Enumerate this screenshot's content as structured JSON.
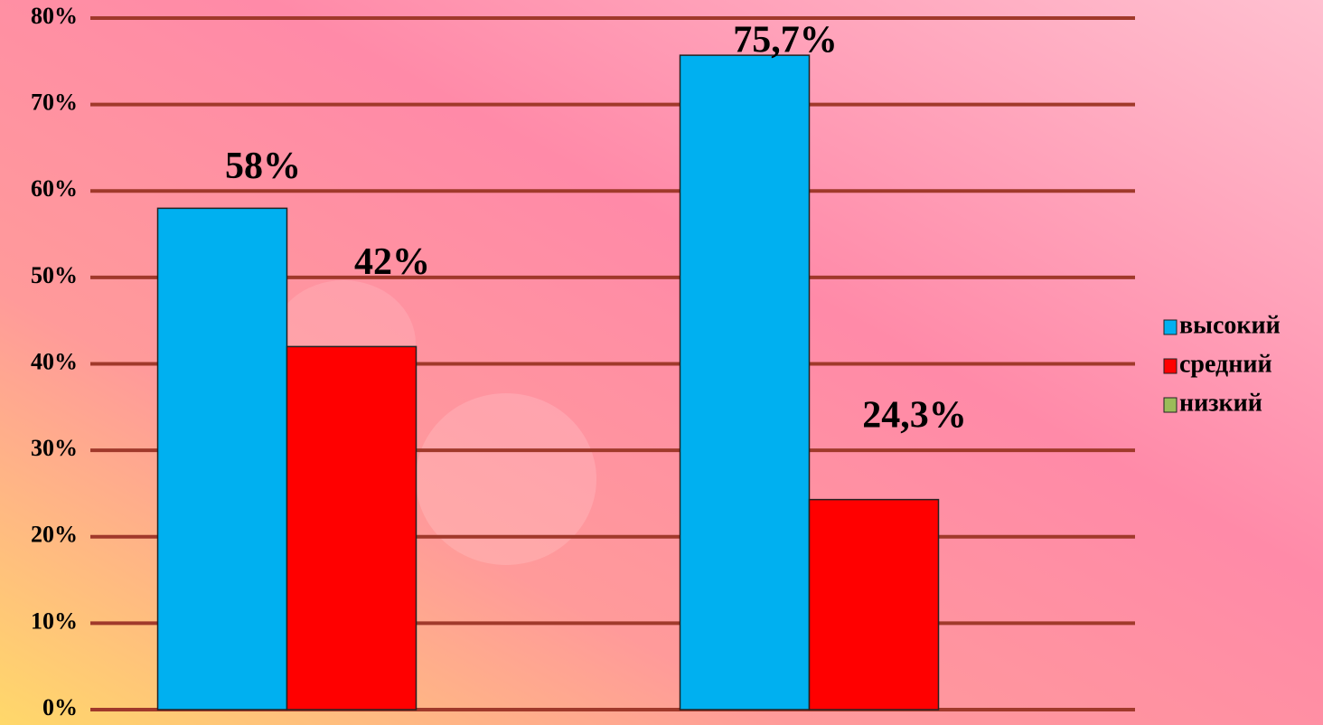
{
  "chart_data": {
    "type": "bar",
    "categories": [
      null,
      null
    ],
    "series": [
      {
        "name": "высокий",
        "color": "#00b0f0",
        "values": [
          58,
          75.7
        ],
        "value_labels": [
          "58%",
          "75,7%"
        ]
      },
      {
        "name": "средний",
        "color": "#ff0000",
        "values": [
          42,
          24.3
        ],
        "value_labels": [
          "42%",
          "24,3%"
        ]
      },
      {
        "name": "низкий",
        "color": "#9bbb59",
        "values": [
          0,
          0
        ]
      }
    ],
    "ylim": [
      0,
      80
    ],
    "yticks": [
      {
        "value": 0,
        "label": "0%"
      },
      {
        "value": 10,
        "label": "10%"
      },
      {
        "value": 20,
        "label": "20%"
      },
      {
        "value": 30,
        "label": "30%"
      },
      {
        "value": 40,
        "label": "40%"
      },
      {
        "value": 50,
        "label": "50%"
      },
      {
        "value": 60,
        "label": "60%"
      },
      {
        "value": 70,
        "label": "70%"
      },
      {
        "value": 80,
        "label": "80%"
      }
    ],
    "grid": true,
    "legend": "right"
  }
}
